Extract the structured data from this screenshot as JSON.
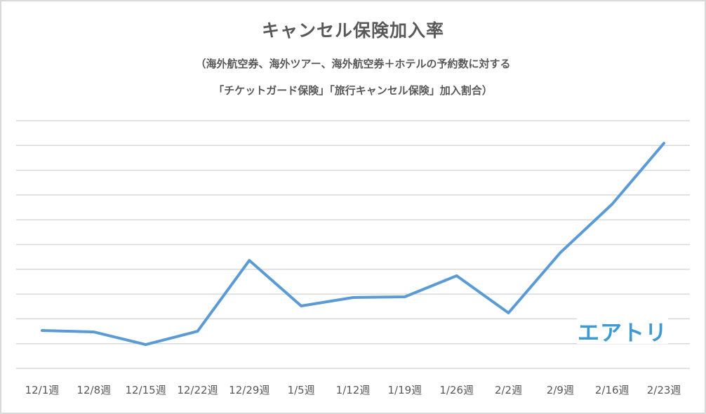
{
  "chart_data": {
    "type": "line",
    "title": "キャンセル保険加入率",
    "subtitle_lines": [
      "（海外航空券、海外ツアー、海外航空券＋ホテルの予約数に対する",
      "「チケットガード保険」「旅行キャンセル保険」加入割合）"
    ],
    "xlabel": "",
    "ylabel": "",
    "y_tick_labels_visible": false,
    "grid": true,
    "gridline_count": 11,
    "ylim": [
      0,
      10
    ],
    "y_units_note": "relative (gridline intervals); no axis values shown",
    "categories": [
      "12/1週",
      "12/8週",
      "12/15週",
      "12/22週",
      "12/29週",
      "1/5週",
      "1/12週",
      "1/19週",
      "1/26週",
      "2/2週",
      "2/9週",
      "2/16週",
      "2/23週"
    ],
    "series": [
      {
        "name": "キャンセル保険加入率",
        "color": "#5b9bd5",
        "values": [
          1.53,
          1.47,
          0.96,
          1.5,
          4.36,
          2.52,
          2.86,
          2.89,
          3.74,
          2.24,
          4.67,
          6.63,
          9.09
        ]
      }
    ],
    "legend": "none"
  },
  "chart": {
    "title": "キャンセル保険加入率",
    "subtitle1": "（海外航空券、海外ツアー、海外航空券＋ホテルの予約数に対する",
    "subtitle2": "「チケットガード保険」「旅行キャンセル保険」加入割合）",
    "logo_text": "エアトリ",
    "colors": {
      "line": "#5b9bd5",
      "grid": "#d9d9d9",
      "text": "#595959",
      "logo": "#3e9ad1",
      "border": "#d9d9d9"
    }
  }
}
